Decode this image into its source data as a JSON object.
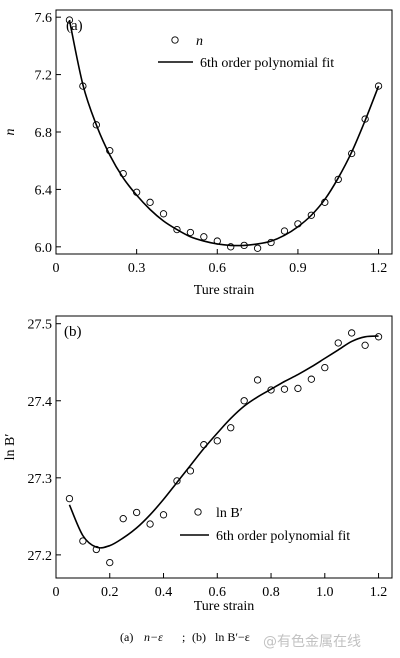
{
  "chart_data": [
    {
      "type": "scatter",
      "panel_label": "(a)",
      "xlabel": "Ture strain",
      "ylabel": "n",
      "xlim": [
        0,
        1.25
      ],
      "ylim": [
        5.95,
        7.65
      ],
      "xticks": [
        0,
        0.3,
        0.6,
        0.9,
        1.2
      ],
      "xtick_labels": [
        "0",
        "0.3",
        "0.6",
        "0.9",
        "1.2"
      ],
      "yticks": [
        6.0,
        6.4,
        6.8,
        7.2,
        7.6
      ],
      "ytick_labels": [
        "6.0",
        "6.4",
        "6.8",
        "7.2",
        "7.6"
      ],
      "legend_position": "top-right",
      "series": [
        {
          "name": "n",
          "style": "open-circle",
          "x": [
            0.05,
            0.1,
            0.15,
            0.2,
            0.25,
            0.3,
            0.35,
            0.4,
            0.45,
            0.5,
            0.55,
            0.6,
            0.65,
            0.7,
            0.75,
            0.8,
            0.85,
            0.9,
            0.95,
            1.0,
            1.05,
            1.1,
            1.15,
            1.2
          ],
          "y": [
            7.58,
            7.12,
            6.85,
            6.67,
            6.51,
            6.38,
            6.31,
            6.23,
            6.12,
            6.1,
            6.07,
            6.04,
            6.0,
            6.01,
            5.99,
            6.03,
            6.11,
            6.16,
            6.22,
            6.31,
            6.47,
            6.65,
            6.89,
            7.12
          ]
        },
        {
          "name": "6th order polynomial fit",
          "style": "line",
          "x": [
            0.05,
            0.1,
            0.15,
            0.2,
            0.25,
            0.3,
            0.35,
            0.4,
            0.45,
            0.5,
            0.55,
            0.6,
            0.65,
            0.7,
            0.75,
            0.8,
            0.85,
            0.9,
            0.95,
            1.0,
            1.05,
            1.1,
            1.15,
            1.2
          ],
          "y": [
            7.58,
            7.13,
            6.85,
            6.64,
            6.48,
            6.36,
            6.26,
            6.18,
            6.12,
            6.07,
            6.04,
            6.02,
            6.01,
            6.01,
            6.02,
            6.04,
            6.08,
            6.14,
            6.22,
            6.33,
            6.48,
            6.66,
            6.88,
            7.12
          ]
        }
      ]
    },
    {
      "type": "scatter",
      "panel_label": "(b)",
      "xlabel": "Ture strain",
      "ylabel": "ln B′",
      "xlim": [
        0,
        1.25
      ],
      "ylim": [
        27.17,
        27.51
      ],
      "xticks": [
        0,
        0.2,
        0.4,
        0.6,
        0.8,
        1.0,
        1.2
      ],
      "xtick_labels": [
        "0",
        "0.2",
        "0.4",
        "0.6",
        "0.8",
        "1.0",
        "1.2"
      ],
      "yticks": [
        27.2,
        27.3,
        27.4,
        27.5
      ],
      "ytick_labels": [
        "27.2",
        "27.3",
        "27.4",
        "27.5"
      ],
      "legend_position": "bottom-right",
      "series": [
        {
          "name": "ln B′",
          "style": "open-circle",
          "x": [
            0.05,
            0.1,
            0.15,
            0.2,
            0.25,
            0.3,
            0.35,
            0.4,
            0.45,
            0.5,
            0.55,
            0.6,
            0.65,
            0.7,
            0.75,
            0.8,
            0.85,
            0.9,
            0.95,
            1.0,
            1.05,
            1.1,
            1.15,
            1.2
          ],
          "y": [
            27.273,
            27.218,
            27.207,
            27.19,
            27.247,
            27.255,
            27.24,
            27.252,
            27.296,
            27.309,
            27.343,
            27.348,
            27.365,
            27.4,
            27.427,
            27.414,
            27.415,
            27.416,
            27.428,
            27.443,
            27.475,
            27.488,
            27.472,
            27.483
          ]
        },
        {
          "name": "6th order polynomial fit",
          "style": "line",
          "x": [
            0.05,
            0.1,
            0.15,
            0.2,
            0.25,
            0.3,
            0.35,
            0.4,
            0.45,
            0.5,
            0.55,
            0.6,
            0.65,
            0.7,
            0.75,
            0.8,
            0.85,
            0.9,
            0.95,
            1.0,
            1.05,
            1.1,
            1.15,
            1.2
          ],
          "y": [
            27.265,
            27.225,
            27.21,
            27.212,
            27.222,
            27.235,
            27.252,
            27.272,
            27.294,
            27.316,
            27.338,
            27.358,
            27.377,
            27.393,
            27.405,
            27.415,
            27.425,
            27.434,
            27.444,
            27.455,
            27.466,
            27.477,
            27.483,
            27.484
          ]
        }
      ]
    }
  ],
  "caption": {
    "label_a": "(a)",
    "expr_a": "n−ε",
    "separator": ";",
    "label_b": "(b)",
    "expr_b": "ln B′−ε"
  },
  "watermark": "@有色金属在线"
}
